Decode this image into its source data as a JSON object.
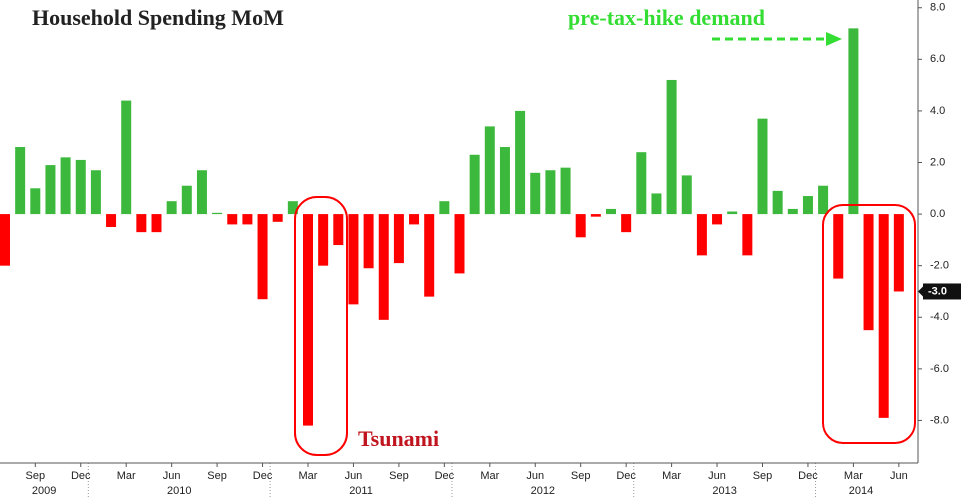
{
  "chart_data": {
    "type": "bar",
    "title": "Household Spending MoM",
    "annotations": [
      "pre-tax-hike demand",
      "Tsunami"
    ],
    "categories": [
      null,
      null,
      "Sep",
      null,
      null,
      "Dec",
      null,
      null,
      "Mar",
      null,
      null,
      "Jun",
      null,
      null,
      "Sep",
      null,
      null,
      "Dec",
      null,
      null,
      "Mar",
      null,
      null,
      "Jun",
      null,
      null,
      "Sep",
      null,
      null,
      "Dec",
      null,
      null,
      "Mar",
      null,
      null,
      "Jun",
      null,
      null,
      "Sep",
      null,
      null,
      "Dec",
      null,
      null,
      "Mar",
      null,
      null,
      "Jun",
      null,
      null,
      "Sep",
      null,
      null,
      "Dec",
      null,
      null,
      "Mar",
      null,
      null,
      "Jun"
    ],
    "years": [
      "2009",
      "2010",
      "2011",
      "2012",
      "2013",
      "2014"
    ],
    "values": [
      -2.0,
      2.6,
      1.0,
      1.9,
      2.2,
      2.1,
      1.7,
      -0.5,
      4.4,
      -0.7,
      -0.7,
      0.5,
      1.1,
      1.7,
      0.05,
      -0.4,
      -0.4,
      -3.3,
      -0.3,
      0.5,
      -8.2,
      -2.0,
      -1.2,
      -3.5,
      -2.1,
      -4.1,
      -1.9,
      -0.4,
      -3.2,
      0.5,
      -2.3,
      2.3,
      3.4,
      2.6,
      4.0,
      1.6,
      1.7,
      1.8,
      -0.9,
      -0.1,
      0.2,
      -0.7,
      2.4,
      0.8,
      5.2,
      1.5,
      -1.6,
      -0.4,
      0.1,
      -1.6,
      3.7,
      0.9,
      0.2,
      0.7,
      1.1,
      -2.5,
      7.2,
      -4.5,
      -7.9,
      -3.0
    ],
    "value_labels": [
      null,
      null,
      null,
      null,
      null,
      null,
      null,
      null,
      null,
      null,
      null,
      null,
      null,
      null,
      null,
      null,
      null,
      null,
      null,
      null,
      null,
      null,
      null,
      null,
      null,
      null,
      null,
      null,
      null,
      null,
      null,
      null,
      null,
      null,
      null,
      null,
      null,
      null,
      null,
      null,
      null,
      null,
      null,
      null,
      null,
      null,
      null,
      null,
      null,
      null,
      null,
      null,
      null,
      null,
      null,
      null,
      null,
      null,
      null,
      "-3.0"
    ],
    "color_positive": "#3cb93c",
    "color_negative": "#ff0000",
    "ylim": [
      -9.65,
      8.3
    ],
    "yticks": [
      {
        "value": -8,
        "label": "-8.0"
      },
      {
        "value": -6,
        "label": "-6.0"
      },
      {
        "value": -4,
        "label": "-4.0"
      },
      {
        "value": -2,
        "label": "-2.0"
      },
      {
        "value": 0,
        "label": "0.0"
      },
      {
        "value": 2,
        "label": "2.0"
      },
      {
        "value": 4,
        "label": "4.0"
      },
      {
        "value": 6,
        "label": "6.0"
      },
      {
        "value": 8,
        "label": "8.0"
      }
    ]
  }
}
